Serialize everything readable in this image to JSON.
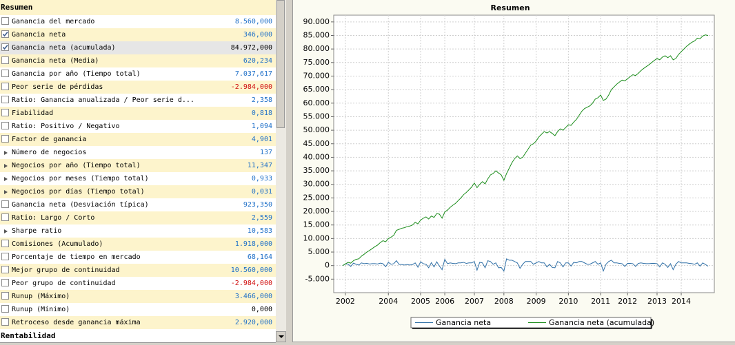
{
  "list": {
    "header": "Resumen",
    "footer": "Rentabilidad",
    "rows": [
      {
        "label": "Ganancia del mercado",
        "value": "8.560,000",
        "color": "#1e6fc8",
        "marker": "checkbox",
        "checked": false
      },
      {
        "label": "Ganancia neta",
        "value": "346,000",
        "color": "#1e6fc8",
        "marker": "checkbox",
        "checked": true
      },
      {
        "label": "Ganancia neta (acumulada)",
        "value": "84.972,000",
        "color": "#000000",
        "marker": "checkbox",
        "checked": true,
        "selected": true
      },
      {
        "label": "Ganancia neta (Media)",
        "value": "620,234",
        "color": "#1e6fc8",
        "marker": "checkbox",
        "checked": false
      },
      {
        "label": "Ganancia por año (Tiempo total)",
        "value": "7.037,617",
        "color": "#1e6fc8",
        "marker": "checkbox",
        "checked": false
      },
      {
        "label": "Peor serie de pérdidas",
        "value": "-2.984,000",
        "color": "#d01010",
        "marker": "checkbox",
        "checked": false
      },
      {
        "label": "Ratio: Ganancia anualizada / Peor serie d...",
        "value": "2,358",
        "color": "#1e6fc8",
        "marker": "checkbox",
        "checked": false
      },
      {
        "label": "Fiabilidad",
        "value": "0,818",
        "color": "#1e6fc8",
        "marker": "checkbox",
        "checked": false
      },
      {
        "label": "Ratio: Positivo / Negativo",
        "value": "1,094",
        "color": "#1e6fc8",
        "marker": "checkbox",
        "checked": false
      },
      {
        "label": "Factor de ganancia",
        "value": "4,901",
        "color": "#1e6fc8",
        "marker": "checkbox",
        "checked": false
      },
      {
        "label": "Número de negocios",
        "value": "137",
        "color": "#1e6fc8",
        "marker": "arrow"
      },
      {
        "label": "Negocios por año (Tiempo total)",
        "value": "11,347",
        "color": "#1e6fc8",
        "marker": "arrow"
      },
      {
        "label": "Negocios por meses (Tiempo total)",
        "value": "0,933",
        "color": "#1e6fc8",
        "marker": "arrow"
      },
      {
        "label": "Negocios por días (Tiempo total)",
        "value": "0,031",
        "color": "#1e6fc8",
        "marker": "arrow"
      },
      {
        "label": "Ganancia neta (Desviación típica)",
        "value": "923,350",
        "color": "#1e6fc8",
        "marker": "checkbox",
        "checked": false
      },
      {
        "label": "Ratio: Largo / Corto",
        "value": "2,559",
        "color": "#1e6fc8",
        "marker": "checkbox",
        "checked": false
      },
      {
        "label": "Sharpe ratio",
        "value": "10,583",
        "color": "#1e6fc8",
        "marker": "arrow"
      },
      {
        "label": "Comisiones (Acumulado)",
        "value": "1.918,000",
        "color": "#1e6fc8",
        "marker": "checkbox",
        "checked": false
      },
      {
        "label": "Porcentaje de tiempo en mercado",
        "value": "68,164",
        "color": "#1e6fc8",
        "marker": "checkbox",
        "checked": false
      },
      {
        "label": "Mejor grupo de continuidad",
        "value": "10.560,000",
        "color": "#1e6fc8",
        "marker": "checkbox",
        "checked": false
      },
      {
        "label": "Peor grupo de continuidad",
        "value": "-2.984,000",
        "color": "#d01010",
        "marker": "checkbox",
        "checked": false
      },
      {
        "label": "Runup (Máximo)",
        "value": "3.466,000",
        "color": "#1e6fc8",
        "marker": "checkbox",
        "checked": false
      },
      {
        "label": "Runup (Mínimo)",
        "value": "0,000",
        "color": "#000000",
        "marker": "checkbox",
        "checked": false
      },
      {
        "label": "Retroceso desde ganancia máxima",
        "value": "2.920,000",
        "color": "#1e6fc8",
        "marker": "checkbox",
        "checked": false
      }
    ]
  },
  "chart_data": {
    "type": "line",
    "title": "Resumen",
    "categories": [
      null,
      "2002",
      null,
      null,
      null,
      null,
      null,
      null,
      null,
      null,
      null,
      null,
      null,
      null,
      null,
      null,
      null,
      "2004",
      null,
      null,
      null,
      null,
      null,
      null,
      null,
      null,
      null,
      null,
      null,
      "2005",
      null,
      null,
      null,
      null,
      null,
      null,
      null,
      null,
      "2006",
      null,
      null,
      null,
      null,
      null,
      null,
      null,
      null,
      null,
      null,
      "2007",
      null,
      null,
      null,
      null,
      null,
      null,
      null,
      null,
      null,
      null,
      "2008",
      null,
      null,
      null,
      null,
      null,
      null,
      null,
      null,
      null,
      null,
      null,
      "2009",
      null,
      null,
      null,
      null,
      null,
      null,
      null,
      null,
      null,
      null,
      null,
      "2010",
      null,
      null,
      null,
      null,
      null,
      null,
      null,
      null,
      null,
      null,
      null,
      "2011",
      null,
      null,
      null,
      null,
      null,
      null,
      null,
      null,
      null,
      "2012",
      null,
      null,
      null,
      null,
      null,
      null,
      null,
      null,
      null,
      null,
      "2013",
      null,
      null,
      null,
      null,
      null,
      null,
      null,
      null,
      "2014",
      null,
      null,
      null,
      null,
      null,
      null,
      null,
      null,
      null,
      null
    ],
    "series": [
      {
        "name": "Ganancia neta",
        "color": "#2f6fa6",
        "values": [
          0,
          600,
          600,
          -300,
          900,
          500,
          200,
          1000,
          700,
          800,
          600,
          700,
          700,
          600,
          900,
          700,
          -400,
          1200,
          500,
          700,
          1800,
          400,
          400,
          200,
          400,
          200,
          400,
          1000,
          -600,
          1400,
          700,
          500,
          -800,
          1100,
          -500,
          1400,
          -200,
          -1500,
          2300,
          700,
          1000,
          800,
          700,
          1000,
          1000,
          1200,
          800,
          1000,
          1000,
          1500,
          -1700,
          1200,
          1000,
          -800,
          1800,
          1500,
          500,
          1000,
          -800,
          -700,
          -2000,
          2500,
          2000,
          2000,
          1500,
          1000,
          -1000,
          500,
          1500,
          1500,
          1500,
          500,
          1000,
          1500,
          1000,
          1000,
          -500,
          500,
          -700,
          -800,
          1500,
          1000,
          -500,
          1000,
          1000,
          -200,
          1200,
          1000,
          1500,
          1500,
          1000,
          500,
          500,
          1000,
          1500,
          500,
          1000,
          -2000,
          500,
          1500,
          2000,
          1000,
          1000,
          800,
          700,
          -300,
          800,
          800,
          700,
          -300,
          800,
          1000,
          800,
          700,
          700,
          800,
          800,
          700,
          -500,
          1000,
          500,
          -700,
          700,
          -1500,
          500,
          1500,
          1000,
          1000,
          1000,
          800,
          700,
          500,
          1000,
          -200,
          1000,
          400,
          -228
        ]
      },
      {
        "name": "Ganancia neta (acumulada)",
        "color": "#1a8c1a",
        "values": [
          0,
          600,
          1200,
          900,
          1800,
          2300,
          2500,
          3500,
          4200,
          5000,
          5600,
          6300,
          7000,
          7600,
          8500,
          9200,
          8800,
          10000,
          10500,
          11200,
          13000,
          13400,
          13800,
          14000,
          14400,
          14600,
          15000,
          16000,
          15400,
          16800,
          17500,
          18000,
          17200,
          18300,
          17800,
          19200,
          19000,
          17500,
          19800,
          20500,
          21500,
          22300,
          23000,
          24000,
          25000,
          26200,
          27000,
          28000,
          29000,
          30500,
          28800,
          30000,
          31000,
          30200,
          32000,
          33500,
          34000,
          35000,
          34200,
          33500,
          31500,
          34000,
          36000,
          38000,
          39500,
          40500,
          39500,
          40000,
          41500,
          43000,
          44500,
          45000,
          46000,
          47500,
          48500,
          49500,
          49000,
          49500,
          48800,
          48000,
          49500,
          50500,
          50000,
          51000,
          52000,
          51800,
          53000,
          54000,
          55500,
          57000,
          58000,
          58500,
          59000,
          60000,
          61500,
          62000,
          63000,
          61000,
          61500,
          63000,
          65000,
          66000,
          67000,
          67800,
          68500,
          68200,
          69000,
          69800,
          70500,
          70200,
          71000,
          72000,
          72800,
          73500,
          74200,
          75000,
          75800,
          76500,
          76000,
          77000,
          77500,
          76800,
          77500,
          76000,
          76500,
          78000,
          79000,
          80000,
          81000,
          81800,
          82500,
          83000,
          84000,
          83800,
          84800,
          85200,
          84972
        ]
      }
    ],
    "ylim": [
      -10000,
      92500
    ],
    "yticks": [
      {
        "value": -5000,
        "label": "-5.000"
      },
      0,
      {
        "value": 5000,
        "label": "5.000"
      },
      {
        "value": 10000,
        "label": "10.000"
      },
      {
        "value": 15000,
        "label": "15.000"
      },
      {
        "value": 20000,
        "label": "20.000"
      },
      {
        "value": 25000,
        "label": "25.000"
      },
      {
        "value": 30000,
        "label": "30.000"
      },
      {
        "value": 35000,
        "label": "35.000"
      },
      {
        "value": 40000,
        "label": "40.000"
      },
      {
        "value": 45000,
        "label": "45.000"
      },
      {
        "value": 50000,
        "label": "50.000"
      },
      {
        "value": 55000,
        "label": "55.000"
      },
      {
        "value": 60000,
        "label": "60.000"
      },
      {
        "value": 65000,
        "label": "65.000"
      },
      {
        "value": 70000,
        "label": "70.000"
      },
      {
        "value": 75000,
        "label": "75.000"
      },
      {
        "value": 80000,
        "label": "80.000"
      },
      {
        "value": 85000,
        "label": "85.000"
      },
      {
        "value": 90000,
        "label": "90.000"
      }
    ],
    "grid": true,
    "legend": "bottom"
  }
}
